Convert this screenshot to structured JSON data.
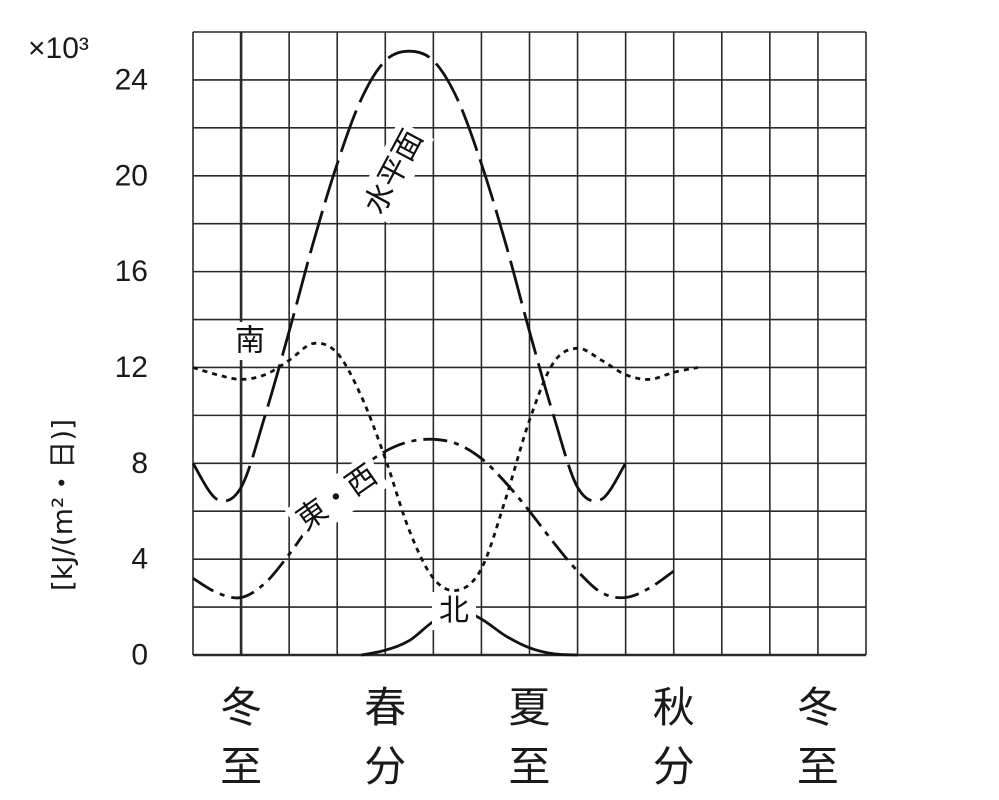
{
  "chart_data": {
    "type": "line",
    "multiplier_label": "×10³",
    "ylabel": "[kJ/(m²・日)]",
    "ylim": [
      0,
      26
    ],
    "yticks": [
      "0",
      "4",
      "8",
      "12",
      "16",
      "20",
      "24"
    ],
    "x_categories": [
      {
        "line1": "冬",
        "line2": "至"
      },
      {
        "line1": "春",
        "line2": "分"
      },
      {
        "line1": "夏",
        "line2": "至"
      },
      {
        "line1": "秋",
        "line2": "分"
      },
      {
        "line1": "冬",
        "line2": "至"
      }
    ],
    "grid": true,
    "series": [
      {
        "name": "水平面",
        "style": "long-dash",
        "points": [
          [
            -1,
            8.0
          ],
          [
            -0.5,
            6.5
          ],
          [
            0,
            7.0
          ],
          [
            0.5,
            10.0
          ],
          [
            1,
            13.5
          ],
          [
            1.5,
            17.2
          ],
          [
            2,
            20.5
          ],
          [
            2.5,
            23.2
          ],
          [
            3,
            24.8
          ],
          [
            3.5,
            25.2
          ],
          [
            4,
            24.8
          ],
          [
            4.5,
            23.2
          ],
          [
            5,
            20.5
          ],
          [
            5.5,
            17.2
          ],
          [
            6,
            13.5
          ],
          [
            6.5,
            10.0
          ],
          [
            7,
            7.0
          ],
          [
            7.5,
            6.5
          ],
          [
            8,
            8.0
          ]
        ]
      },
      {
        "name": "南",
        "style": "dotted",
        "points": [
          [
            -1,
            12.0
          ],
          [
            -0.5,
            11.7
          ],
          [
            0,
            11.5
          ],
          [
            0.5,
            11.7
          ],
          [
            1,
            12.3
          ],
          [
            1.5,
            13.0
          ],
          [
            2,
            12.6
          ],
          [
            2.5,
            10.8
          ],
          [
            3,
            8.2
          ],
          [
            3.5,
            5.2
          ],
          [
            4,
            3.2
          ],
          [
            4.5,
            2.7
          ],
          [
            5,
            3.6
          ],
          [
            5.5,
            6.5
          ],
          [
            6,
            9.8
          ],
          [
            6.5,
            12.2
          ],
          [
            7,
            12.8
          ],
          [
            7.5,
            12.3
          ],
          [
            8,
            11.7
          ],
          [
            8.5,
            11.5
          ],
          [
            9,
            11.8
          ],
          [
            9.5,
            12.0
          ]
        ]
      },
      {
        "name": "東・西",
        "style": "dash-dot",
        "points": [
          [
            -1,
            3.2
          ],
          [
            -0.5,
            2.6
          ],
          [
            0,
            2.4
          ],
          [
            0.5,
            3.0
          ],
          [
            1,
            4.2
          ],
          [
            1.5,
            5.6
          ],
          [
            2,
            6.8
          ],
          [
            2.5,
            7.8
          ],
          [
            3,
            8.5
          ],
          [
            3.5,
            8.9
          ],
          [
            4,
            9.0
          ],
          [
            4.5,
            8.8
          ],
          [
            5,
            8.2
          ],
          [
            5.5,
            7.2
          ],
          [
            6,
            6.0
          ],
          [
            6.5,
            4.7
          ],
          [
            7,
            3.5
          ],
          [
            7.5,
            2.6
          ],
          [
            8,
            2.4
          ],
          [
            8.5,
            2.8
          ],
          [
            9,
            3.5
          ]
        ]
      },
      {
        "name": "北",
        "style": "solid",
        "points": [
          [
            2.5,
            0.0
          ],
          [
            3,
            0.2
          ],
          [
            3.5,
            0.6
          ],
          [
            4,
            1.4
          ],
          [
            4.5,
            1.9
          ],
          [
            5,
            1.5
          ],
          [
            5.5,
            0.8
          ],
          [
            6,
            0.3
          ],
          [
            6.5,
            0.05
          ],
          [
            7,
            0.0
          ]
        ]
      }
    ]
  }
}
